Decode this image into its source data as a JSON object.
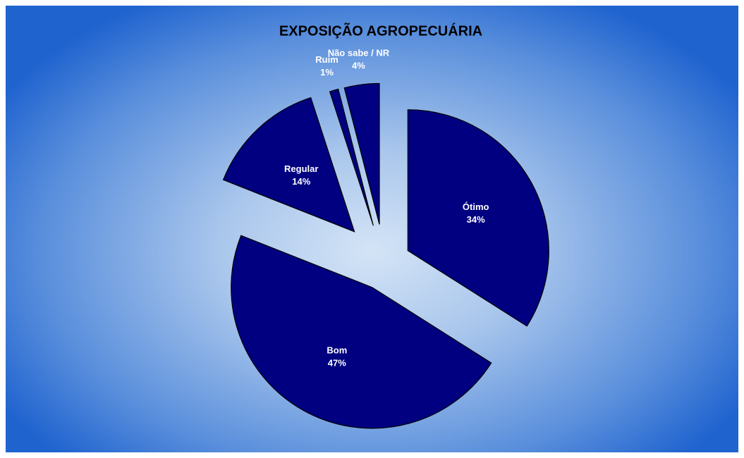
{
  "chart_data": {
    "type": "pie",
    "title": "EXPOSIÇÃO AGROPECUÁRIA",
    "categories": [
      "Ótimo",
      "Bom",
      "Regular",
      "Ruim",
      "Não sabe / NR"
    ],
    "values": [
      34,
      47,
      14,
      1,
      4
    ],
    "value_labels": [
      "34%",
      "47%",
      "14%",
      "1%",
      "4%"
    ],
    "color": "#000080"
  }
}
